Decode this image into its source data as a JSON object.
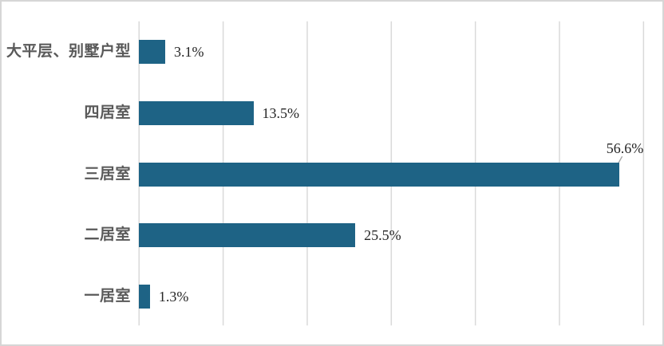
{
  "chart_data": {
    "type": "bar",
    "orientation": "horizontal",
    "title": "",
    "categories": [
      "大平层、别墅户型",
      "四居室",
      "三居室",
      "二居室",
      "一居室"
    ],
    "values": [
      3.1,
      13.5,
      56.6,
      25.5,
      1.3
    ],
    "value_labels": [
      "3.1%",
      "13.5%",
      "56.6%",
      "25.5%",
      "1.3%"
    ],
    "value_label_placements": [
      "right",
      "right",
      "callout-top",
      "right",
      "right"
    ],
    "xlim": [
      0,
      60
    ],
    "ticks": [
      0,
      10,
      20,
      30,
      40,
      50,
      60
    ],
    "grid": "vertical-only",
    "legend": "none",
    "colors": {
      "bar": "#1e6385",
      "gridline": "#d9d9d9",
      "category_label": "#595959",
      "value_label": "#262626",
      "leader_line": "#a6a6a6",
      "frame_border": "#d6d6d6",
      "background": "#ffffff"
    }
  }
}
